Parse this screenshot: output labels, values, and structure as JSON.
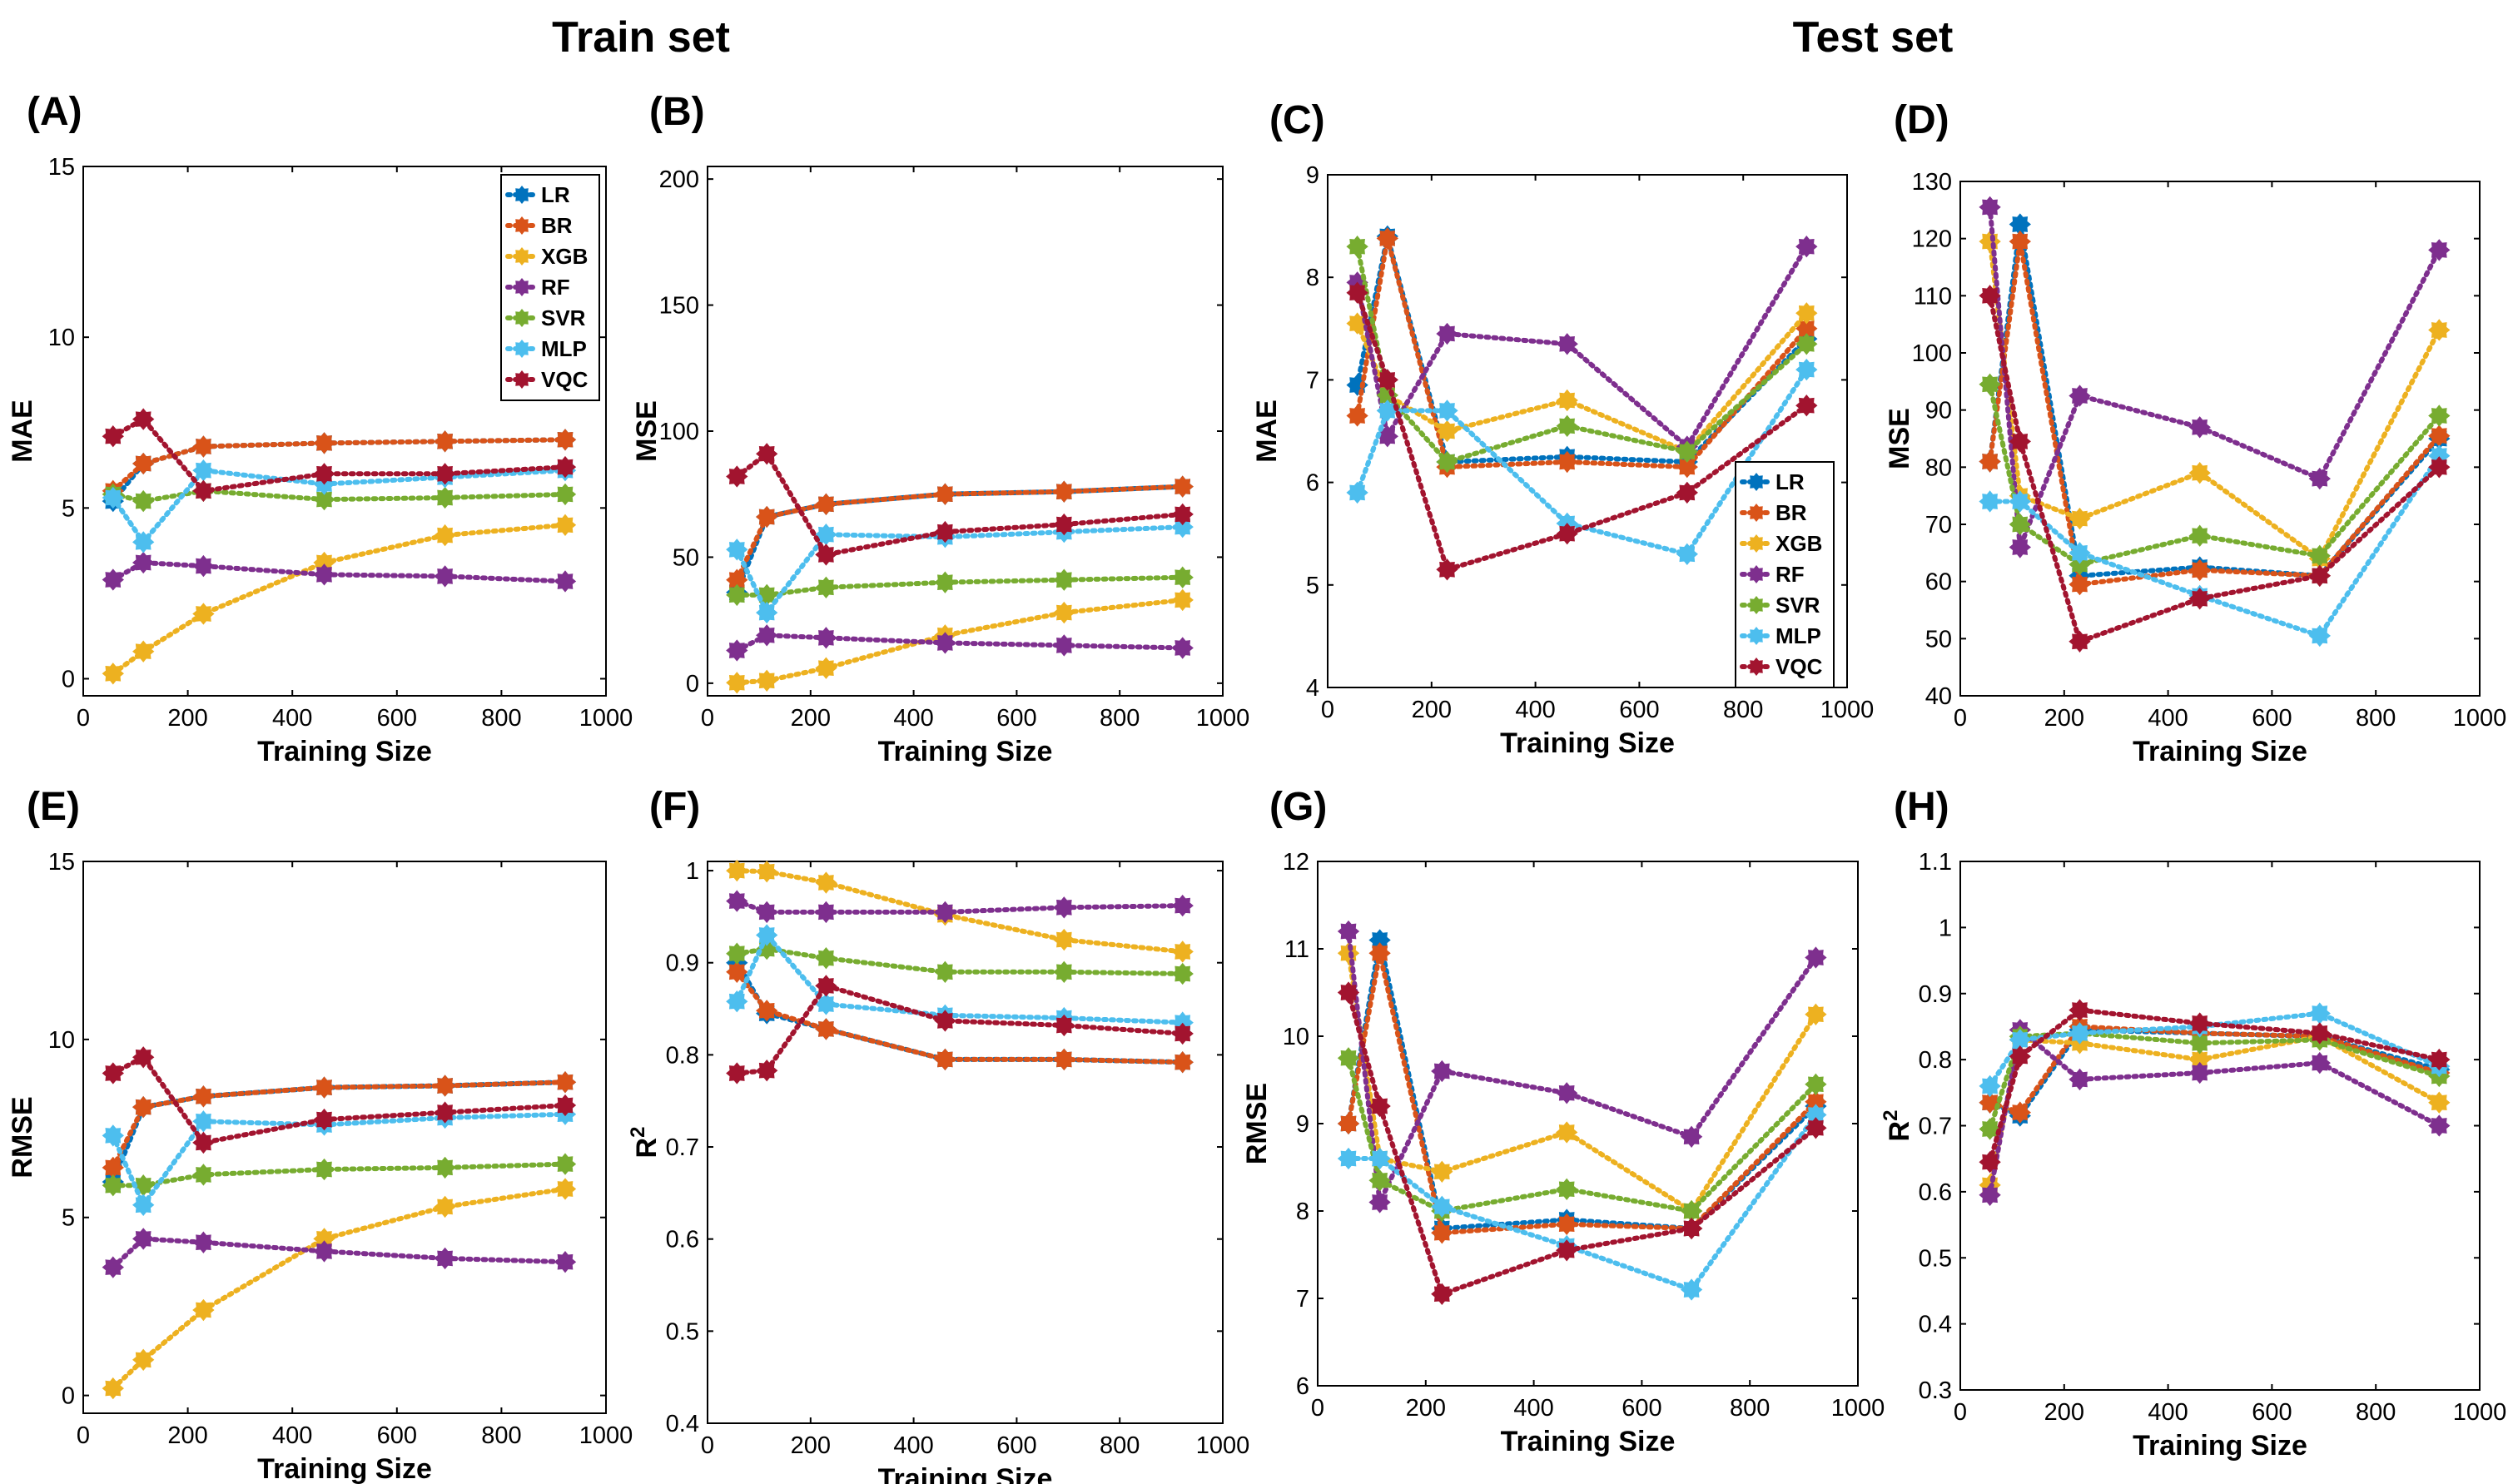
{
  "titles": {
    "train": "Train set",
    "test": "Test set"
  },
  "series_names": [
    "LR",
    "BR",
    "XGB",
    "RF",
    "SVR",
    "MLP",
    "VQC"
  ],
  "colors": {
    "LR": "#0072BD",
    "BR": "#D95319",
    "XGB": "#EDB120",
    "RF": "#7E2F8E",
    "SVR": "#77AC30",
    "MLP": "#4DBEEE",
    "VQC": "#A2142F"
  },
  "chart_data": [
    {
      "id": "A",
      "panel_label": "(A)",
      "set": "Train set",
      "type": "line",
      "xlabel": "Training Size",
      "ylabel": "MAE",
      "xlim": [
        0,
        1000
      ],
      "ylim": [
        -0.5,
        15
      ],
      "xticks": [
        0,
        200,
        400,
        600,
        800,
        1000
      ],
      "yticks": [
        0,
        5,
        10,
        15
      ],
      "legend": "top-right",
      "x": [
        57,
        115,
        230,
        461,
        692,
        922
      ],
      "series": [
        {
          "name": "LR",
          "values": [
            5.2,
            6.3,
            6.8,
            6.9,
            6.95,
            7.0
          ]
        },
        {
          "name": "BR",
          "values": [
            5.5,
            6.3,
            6.8,
            6.9,
            6.95,
            7.0
          ]
        },
        {
          "name": "XGB",
          "values": [
            0.15,
            0.8,
            1.9,
            3.4,
            4.2,
            4.5
          ]
        },
        {
          "name": "RF",
          "values": [
            2.9,
            3.4,
            3.3,
            3.05,
            3.0,
            2.85
          ]
        },
        {
          "name": "SVR",
          "values": [
            5.4,
            5.2,
            5.5,
            5.25,
            5.3,
            5.4
          ]
        },
        {
          "name": "MLP",
          "values": [
            5.3,
            4.0,
            6.1,
            5.7,
            5.9,
            6.1
          ]
        },
        {
          "name": "VQC",
          "values": [
            7.1,
            7.6,
            5.5,
            6.0,
            6.0,
            6.2
          ]
        }
      ]
    },
    {
      "id": "B",
      "panel_label": "(B)",
      "set": "Train set",
      "type": "line",
      "xlabel": "Training Size",
      "ylabel": "MSE",
      "xlim": [
        0,
        1000
      ],
      "ylim": [
        -5,
        205
      ],
      "xticks": [
        0,
        200,
        400,
        600,
        800,
        1000
      ],
      "yticks": [
        0,
        50,
        100,
        150,
        200
      ],
      "x": [
        57,
        115,
        230,
        461,
        692,
        922
      ],
      "series": [
        {
          "name": "LR",
          "values": [
            36,
            66,
            71,
            75,
            76,
            78
          ]
        },
        {
          "name": "BR",
          "values": [
            41,
            66,
            71,
            75,
            76,
            78
          ]
        },
        {
          "name": "XGB",
          "values": [
            0.2,
            1,
            6,
            19,
            28,
            33
          ]
        },
        {
          "name": "RF",
          "values": [
            13,
            19,
            18,
            16,
            15,
            14
          ]
        },
        {
          "name": "SVR",
          "values": [
            35,
            35,
            38,
            40,
            41,
            42
          ]
        },
        {
          "name": "MLP",
          "values": [
            53,
            28,
            59,
            58,
            60,
            62
          ]
        },
        {
          "name": "VQC",
          "values": [
            82,
            91,
            51,
            60,
            63,
            67
          ]
        }
      ]
    },
    {
      "id": "C",
      "panel_label": "(C)",
      "set": "Test set",
      "type": "line",
      "xlabel": "Training Size",
      "ylabel": "MAE",
      "xlim": [
        0,
        1000
      ],
      "ylim": [
        4,
        9
      ],
      "xticks": [
        0,
        200,
        400,
        600,
        800,
        1000
      ],
      "yticks": [
        4,
        5,
        6,
        7,
        8,
        9
      ],
      "legend": "bottom-right",
      "x": [
        57,
        115,
        230,
        461,
        692,
        922
      ],
      "series": [
        {
          "name": "LR",
          "values": [
            6.95,
            8.4,
            6.2,
            6.25,
            6.2,
            7.4
          ]
        },
        {
          "name": "BR",
          "values": [
            6.65,
            8.38,
            6.15,
            6.2,
            6.15,
            7.5
          ]
        },
        {
          "name": "XGB",
          "values": [
            7.55,
            6.85,
            6.5,
            6.8,
            6.3,
            7.65
          ]
        },
        {
          "name": "RF",
          "values": [
            7.95,
            6.45,
            7.45,
            7.35,
            6.35,
            8.3
          ]
        },
        {
          "name": "SVR",
          "values": [
            8.3,
            6.85,
            6.2,
            6.55,
            6.3,
            7.35
          ]
        },
        {
          "name": "MLP",
          "values": [
            5.9,
            6.7,
            6.7,
            5.6,
            5.3,
            7.1
          ]
        },
        {
          "name": "VQC",
          "values": [
            7.85,
            7.0,
            5.15,
            5.5,
            5.9,
            6.75
          ]
        }
      ]
    },
    {
      "id": "D",
      "panel_label": "(D)",
      "set": "Test set",
      "type": "line",
      "xlabel": "Training Size",
      "ylabel": "MSE",
      "xlim": [
        0,
        1000
      ],
      "ylim": [
        40,
        130
      ],
      "xticks": [
        0,
        200,
        400,
        600,
        800,
        1000
      ],
      "yticks": [
        40,
        50,
        60,
        70,
        80,
        90,
        100,
        110,
        120,
        130
      ],
      "x": [
        57,
        115,
        230,
        461,
        692,
        922
      ],
      "series": [
        {
          "name": "LR",
          "values": [
            81,
            122.5,
            61,
            62.5,
            61,
            85
          ]
        },
        {
          "name": "BR",
          "values": [
            81,
            119.5,
            59.5,
            62,
            61,
            85.5
          ]
        },
        {
          "name": "XGB",
          "values": [
            119.5,
            75,
            71,
            79,
            64,
            104
          ]
        },
        {
          "name": "RF",
          "values": [
            125.5,
            66,
            92.5,
            87,
            78,
            118
          ]
        },
        {
          "name": "SVR",
          "values": [
            94.5,
            70,
            63,
            68,
            64.5,
            89
          ]
        },
        {
          "name": "MLP",
          "values": [
            74,
            74,
            65,
            57.5,
            50.5,
            82
          ]
        },
        {
          "name": "VQC",
          "values": [
            110,
            84.5,
            49.5,
            57,
            61,
            80
          ]
        }
      ]
    },
    {
      "id": "E",
      "panel_label": "(E)",
      "set": "Train set",
      "type": "line",
      "xlabel": "Training Size",
      "ylabel": "RMSE",
      "xlim": [
        0,
        1000
      ],
      "ylim": [
        -0.5,
        15
      ],
      "xticks": [
        0,
        200,
        400,
        600,
        800,
        1000
      ],
      "yticks": [
        0,
        5,
        10,
        15
      ],
      "x": [
        57,
        115,
        230,
        461,
        692,
        922
      ],
      "series": [
        {
          "name": "LR",
          "values": [
            6.0,
            8.1,
            8.4,
            8.65,
            8.7,
            8.8
          ]
        },
        {
          "name": "BR",
          "values": [
            6.4,
            8.1,
            8.4,
            8.65,
            8.7,
            8.8
          ]
        },
        {
          "name": "XGB",
          "values": [
            0.2,
            1.0,
            2.4,
            4.4,
            5.3,
            5.8
          ]
        },
        {
          "name": "RF",
          "values": [
            3.6,
            4.4,
            4.3,
            4.05,
            3.85,
            3.75
          ]
        },
        {
          "name": "SVR",
          "values": [
            5.9,
            5.9,
            6.2,
            6.35,
            6.4,
            6.5
          ]
        },
        {
          "name": "MLP",
          "values": [
            7.3,
            5.35,
            7.7,
            7.6,
            7.8,
            7.9
          ]
        },
        {
          "name": "VQC",
          "values": [
            9.05,
            9.5,
            7.1,
            7.75,
            7.95,
            8.15
          ]
        }
      ]
    },
    {
      "id": "F",
      "panel_label": "(F)",
      "set": "Train set",
      "type": "line",
      "xlabel": "Training Size",
      "ylabel": "R²",
      "xlim": [
        0,
        1000
      ],
      "ylim": [
        0.4,
        1.01
      ],
      "xticks": [
        0,
        200,
        400,
        600,
        800,
        1000
      ],
      "yticks": [
        0.4,
        0.5,
        0.6,
        0.7,
        0.8,
        0.9,
        1
      ],
      "x": [
        57,
        115,
        230,
        461,
        692,
        922
      ],
      "series": [
        {
          "name": "LR",
          "values": [
            0.9,
            0.845,
            0.828,
            0.795,
            0.795,
            0.792
          ]
        },
        {
          "name": "BR",
          "values": [
            0.89,
            0.848,
            0.828,
            0.795,
            0.795,
            0.792
          ]
        },
        {
          "name": "XGB",
          "values": [
            1.0,
            0.999,
            0.987,
            0.952,
            0.925,
            0.912
          ]
        },
        {
          "name": "RF",
          "values": [
            0.967,
            0.955,
            0.955,
            0.955,
            0.96,
            0.962
          ]
        },
        {
          "name": "SVR",
          "values": [
            0.91,
            0.915,
            0.905,
            0.89,
            0.89,
            0.888
          ]
        },
        {
          "name": "MLP",
          "values": [
            0.858,
            0.93,
            0.855,
            0.843,
            0.84,
            0.835
          ]
        },
        {
          "name": "VQC",
          "values": [
            0.78,
            0.783,
            0.875,
            0.837,
            0.832,
            0.823
          ]
        }
      ]
    },
    {
      "id": "G",
      "panel_label": "(G)",
      "set": "Test set",
      "type": "line",
      "xlabel": "Training Size",
      "ylabel": "RMSE",
      "xlim": [
        0,
        1000
      ],
      "ylim": [
        6,
        12
      ],
      "xticks": [
        0,
        200,
        400,
        600,
        800,
        1000
      ],
      "yticks": [
        6,
        7,
        8,
        9,
        10,
        11,
        12
      ],
      "x": [
        57,
        115,
        230,
        461,
        692,
        922
      ],
      "series": [
        {
          "name": "LR",
          "values": [
            9.0,
            11.1,
            7.8,
            7.9,
            7.8,
            9.2
          ]
        },
        {
          "name": "BR",
          "values": [
            9.0,
            10.95,
            7.75,
            7.85,
            7.8,
            9.25
          ]
        },
        {
          "name": "XGB",
          "values": [
            10.95,
            8.6,
            8.45,
            8.9,
            8.0,
            10.25
          ]
        },
        {
          "name": "RF",
          "values": [
            11.2,
            8.1,
            9.6,
            9.35,
            8.85,
            10.9
          ]
        },
        {
          "name": "SVR",
          "values": [
            9.75,
            8.35,
            8.0,
            8.25,
            8.0,
            9.45
          ]
        },
        {
          "name": "MLP",
          "values": [
            8.6,
            8.6,
            8.05,
            7.6,
            7.1,
            9.1
          ]
        },
        {
          "name": "VQC",
          "values": [
            10.5,
            9.2,
            7.05,
            7.55,
            7.8,
            8.95
          ]
        }
      ]
    },
    {
      "id": "H",
      "panel_label": "(H)",
      "set": "Test set",
      "type": "line",
      "xlabel": "Training Size",
      "ylabel": "R²",
      "xlim": [
        0,
        1000
      ],
      "ylim": [
        0.3,
        1.1
      ],
      "xticks": [
        0,
        200,
        400,
        600,
        800,
        1000
      ],
      "yticks": [
        0.3,
        0.4,
        0.5,
        0.6,
        0.7,
        0.8,
        0.9,
        1,
        1.1
      ],
      "x": [
        57,
        115,
        230,
        461,
        692,
        922
      ],
      "series": [
        {
          "name": "LR",
          "values": [
            0.735,
            0.715,
            0.845,
            0.84,
            0.835,
            0.785
          ]
        },
        {
          "name": "BR",
          "values": [
            0.735,
            0.72,
            0.85,
            0.84,
            0.835,
            0.78
          ]
        },
        {
          "name": "XGB",
          "values": [
            0.61,
            0.83,
            0.825,
            0.8,
            0.835,
            0.735
          ]
        },
        {
          "name": "RF",
          "values": [
            0.595,
            0.845,
            0.77,
            0.78,
            0.795,
            0.7
          ]
        },
        {
          "name": "SVR",
          "values": [
            0.695,
            0.835,
            0.84,
            0.825,
            0.83,
            0.775
          ]
        },
        {
          "name": "MLP",
          "values": [
            0.76,
            0.83,
            0.84,
            0.85,
            0.87,
            0.79
          ]
        },
        {
          "name": "VQC",
          "values": [
            0.645,
            0.805,
            0.875,
            0.855,
            0.84,
            0.8
          ]
        }
      ]
    }
  ]
}
